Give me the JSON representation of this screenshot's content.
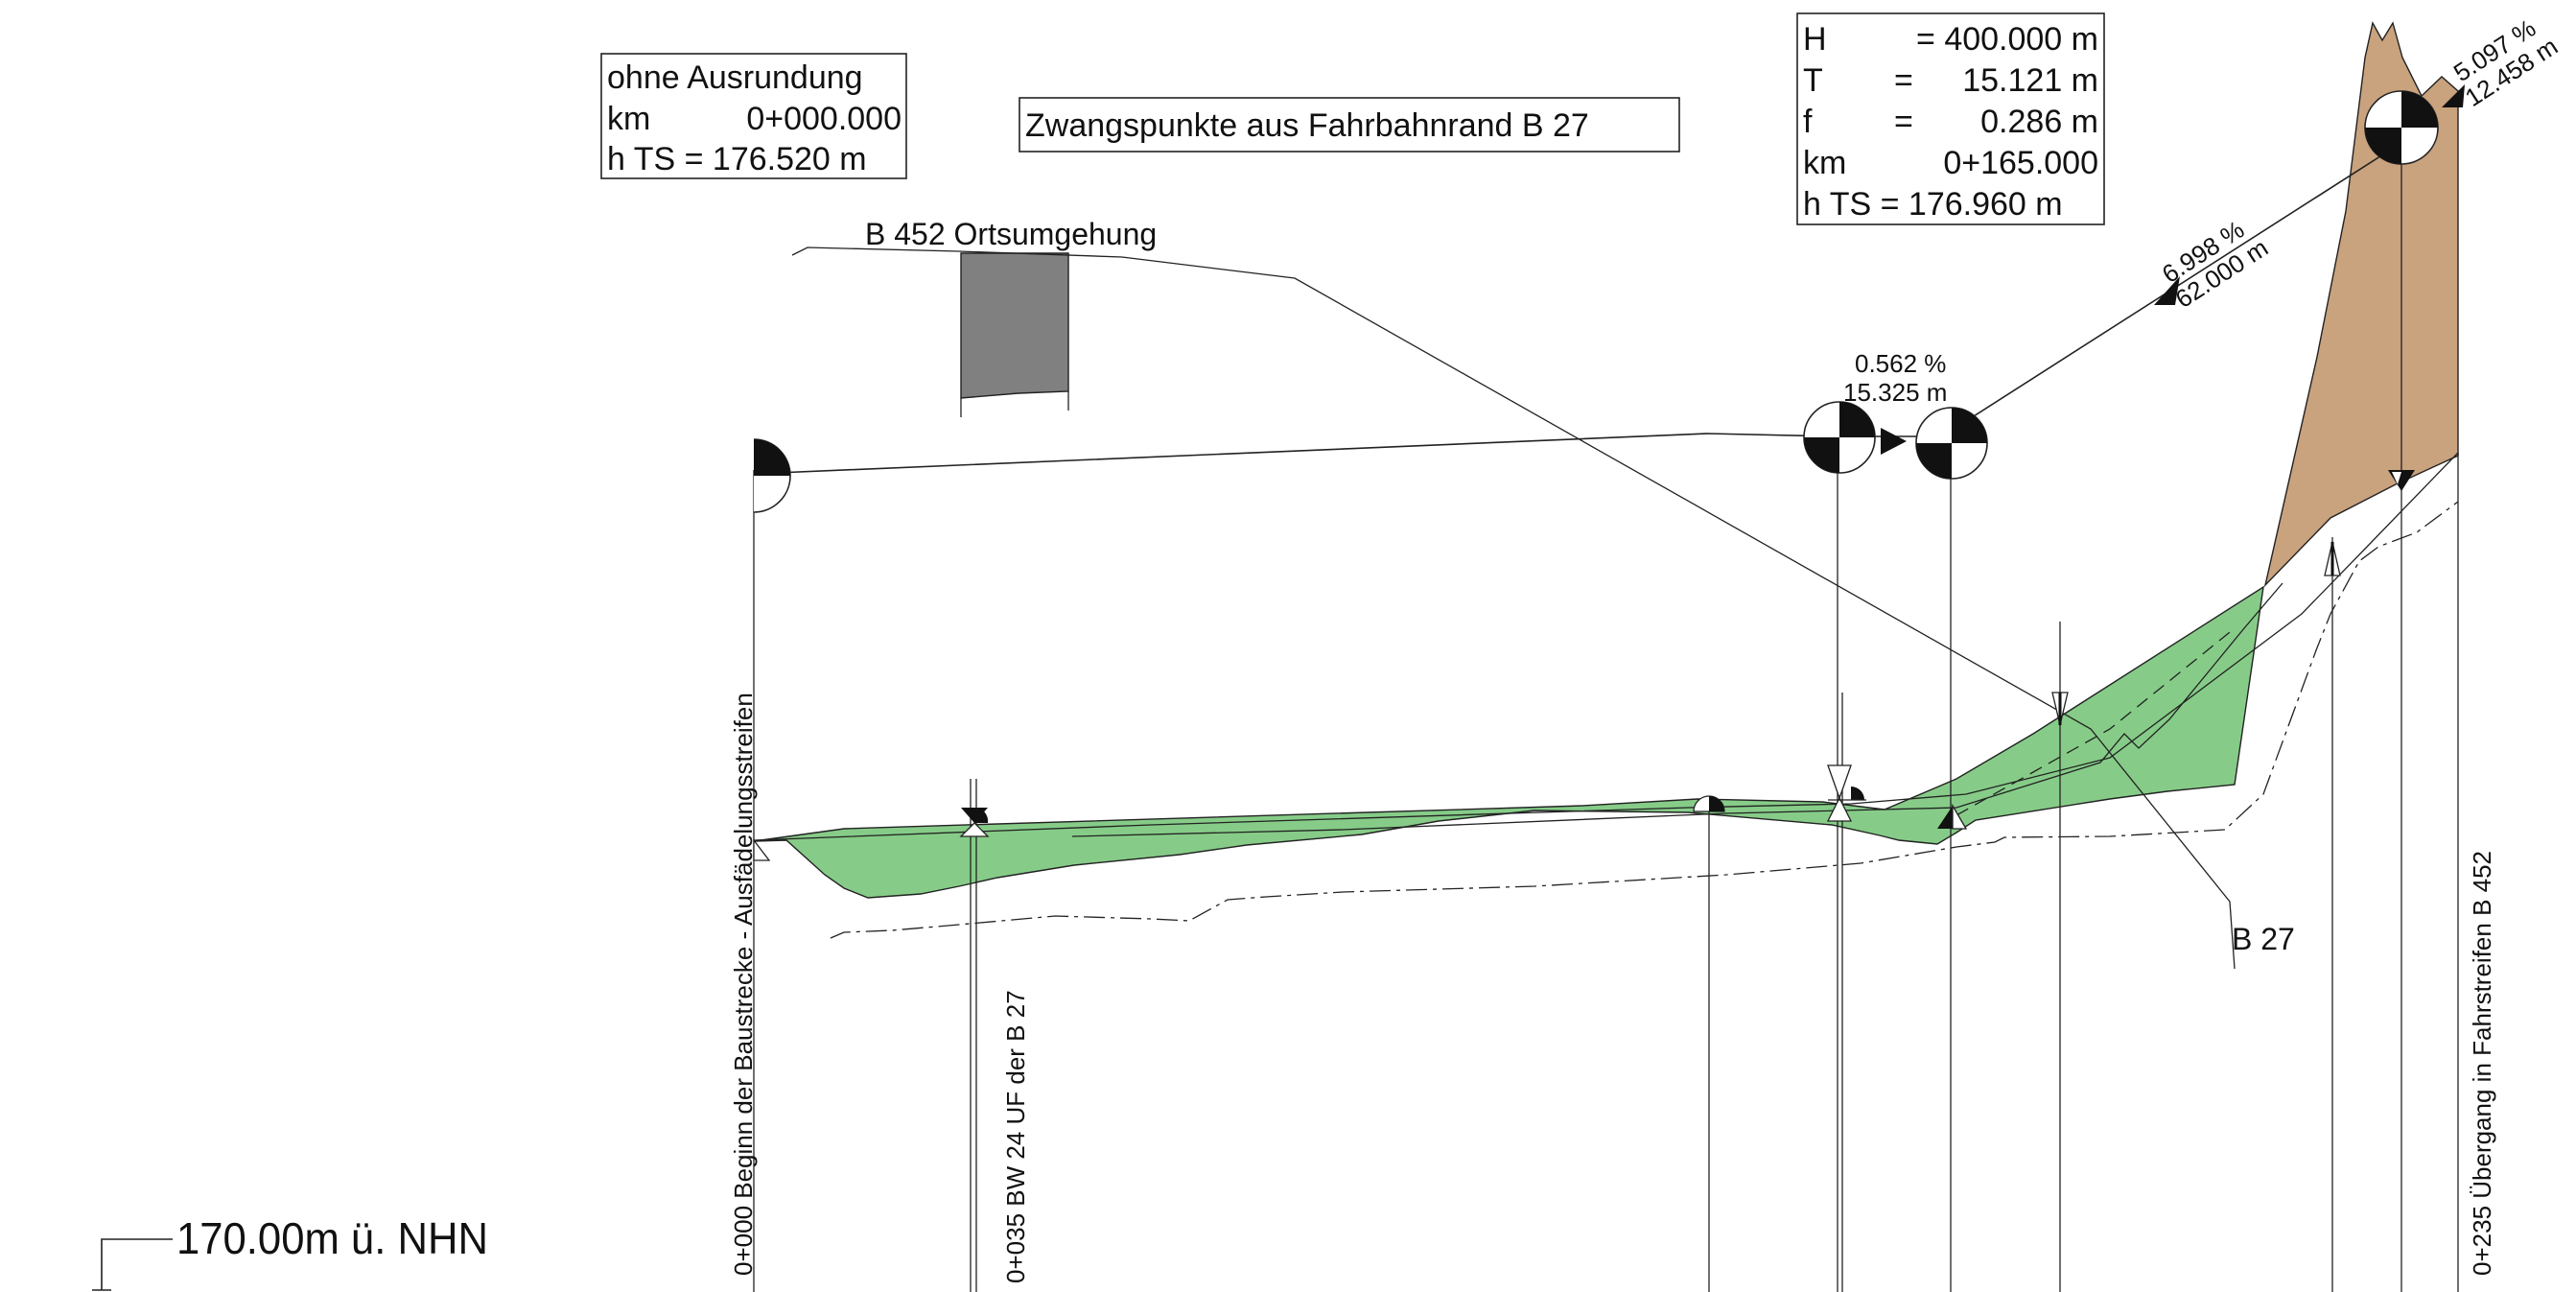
{
  "start_box": {
    "line1": "ohne Ausrundung",
    "km_label": "km",
    "km_value": "0+000.000",
    "h_label": "h TS = 176.520 m"
  },
  "title": "Zwangspunkte aus Fahrbahnrand B 27",
  "curve_box": {
    "H_label": "H",
    "H_eq": "= 400.000 m",
    "T_label": "T",
    "T_eq": "=",
    "T_val": "15.121 m",
    "f_label": "f",
    "f_eq": "=",
    "f_val": "0.286 m",
    "km_label": "km",
    "km_val": "0+165.000",
    "h_label": "h TS = 176.960 m"
  },
  "road_label": "B 452 Ortsumgehung",
  "gradients": {
    "g1_pct": "0.562 %",
    "g1_len": "15.325 m",
    "g2_pct": "6.998 %",
    "g2_len": "62.000 m",
    "g3_pct": "5.097 %",
    "g3_len": "12.458 m"
  },
  "b27_label": "B 27",
  "stations": {
    "s0": "0+000 Beginn der Baustrecke - Ausfädelungsstreifen",
    "s35": "0+035 BW 24 UF der B 27",
    "s235": "0+235 Übergang in Fahrstreifen B 452"
  },
  "datum": "170.00m ü. NHN",
  "colors": {
    "fill_green": "#86cc88",
    "fill_brown": "#c9a27e",
    "bridge_gray": "#808080",
    "line": "#222222"
  }
}
